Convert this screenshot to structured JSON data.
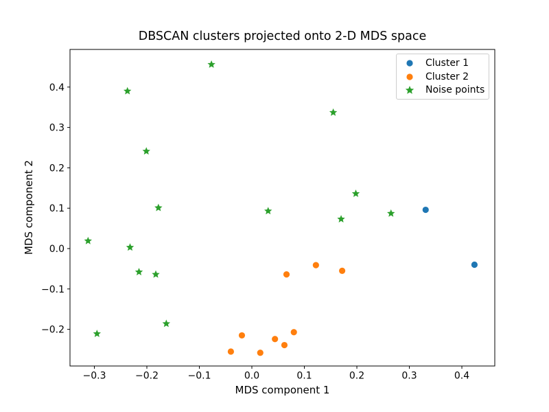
{
  "figure": {
    "background": "#ffffff",
    "spine_color": "#000000",
    "text_color": "#000000",
    "legend_border_color": "#cccccc"
  },
  "chart_data": {
    "type": "scatter",
    "title": "DBSCAN clusters projected onto 2-D MDS space",
    "xlabel": "MDS component 1",
    "ylabel": "MDS component 2",
    "xlim": [
      -0.3464,
      0.4627
    ],
    "ylim": [
      -0.2908,
      0.4932
    ],
    "x_ticks": [
      -0.3,
      -0.2,
      -0.1,
      0.0,
      0.1,
      0.2,
      0.3,
      0.4
    ],
    "x_tick_labels": [
      "−0.3",
      "−0.2",
      "−0.1",
      "0.0",
      "0.1",
      "0.2",
      "0.3",
      "0.4"
    ],
    "y_ticks": [
      0.4,
      0.3,
      0.2,
      0.1,
      0.0,
      -0.1,
      -0.2
    ],
    "y_tick_labels": [
      "0.4",
      "0.3",
      "0.2",
      "0.1",
      "0.0",
      "−0.1",
      "−0.2"
    ],
    "grid": false,
    "legend_position": "upper right",
    "series": [
      {
        "name": "Cluster 1",
        "marker": "circle",
        "color": "#1f77b4",
        "points": [
          [
            0.331,
            0.096
          ],
          [
            0.424,
            -0.04
          ]
        ]
      },
      {
        "name": "Cluster 2",
        "marker": "circle",
        "color": "#ff7f0e",
        "points": [
          [
            -0.04,
            -0.255
          ],
          [
            -0.019,
            -0.215
          ],
          [
            0.016,
            -0.258
          ],
          [
            0.044,
            -0.224
          ],
          [
            0.062,
            -0.239
          ],
          [
            0.08,
            -0.207
          ],
          [
            0.066,
            -0.064
          ],
          [
            0.122,
            -0.041
          ],
          [
            0.172,
            -0.055
          ]
        ]
      },
      {
        "name": "Noise points",
        "marker": "star",
        "color": "#2ca02c",
        "points": [
          [
            -0.077,
            0.456
          ],
          [
            -0.237,
            0.39
          ],
          [
            -0.201,
            0.241
          ],
          [
            0.155,
            0.337
          ],
          [
            -0.178,
            0.101
          ],
          [
            0.031,
            0.093
          ],
          [
            0.198,
            0.136
          ],
          [
            0.17,
            0.073
          ],
          [
            0.265,
            0.087
          ],
          [
            -0.312,
            0.019
          ],
          [
            -0.232,
            0.003
          ],
          [
            -0.215,
            -0.058
          ],
          [
            -0.183,
            -0.064
          ],
          [
            -0.163,
            -0.186
          ],
          [
            -0.295,
            -0.211
          ]
        ]
      }
    ]
  }
}
